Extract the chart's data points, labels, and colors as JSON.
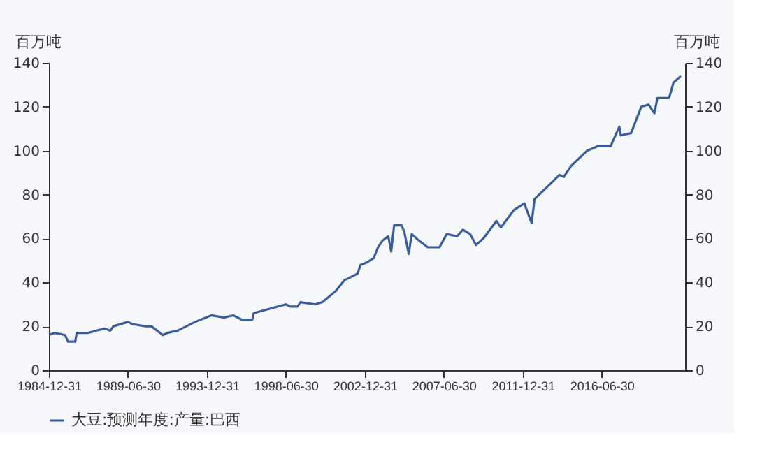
{
  "chart_data": {
    "type": "line",
    "ylabel": "百万吨",
    "y2label": "百万吨",
    "x": [
      "1984-12-31",
      "1985-05",
      "1985-12",
      "1986-02",
      "1986-07",
      "1986-08",
      "1987-04",
      "1988-03",
      "1988-07",
      "1988-09",
      "1989-07",
      "1989-10",
      "1990-07",
      "1990-11",
      "1991-07",
      "1991-10",
      "1992-05",
      "1993-05",
      "1994-04",
      "1995-01",
      "1995-07",
      "1996-01",
      "1996-08",
      "1996-09",
      "1997-08",
      "1998-07",
      "1998-10",
      "1999-03",
      "1999-05",
      "2000-03",
      "2000-08",
      "2001-05",
      "2001-11",
      "2002-08",
      "2002-10",
      "2003-02",
      "2003-07",
      "2003-10",
      "2004-01",
      "2004-05",
      "2004-07",
      "2004-09",
      "2005-02",
      "2005-04",
      "2005-07",
      "2005-09",
      "2006-02",
      "2006-08",
      "2007-04",
      "2007-09",
      "2008-04",
      "2008-08",
      "2009-01",
      "2009-05",
      "2009-10",
      "2010-07",
      "2010-10",
      "2011-07",
      "2012-02",
      "2012-07",
      "2012-09",
      "2013-08",
      "2014-02",
      "2014-05",
      "2014-10",
      "2015-09",
      "2016-04",
      "2017-01",
      "2017-07",
      "2017-08",
      "2018-03",
      "2018-10",
      "2019-03",
      "2019-07",
      "2019-09",
      "2020-05",
      "2020-08",
      "2021-01"
    ],
    "series": [
      {
        "name": "大豆:预测年度:产量:巴西",
        "color": "#3a5da0",
        "values": [
          16,
          17,
          16,
          13,
          13,
          17,
          17,
          19,
          18,
          20,
          22,
          21,
          20,
          20,
          16,
          17,
          18,
          22,
          25,
          24,
          25,
          23,
          23,
          26,
          28,
          30,
          29,
          29,
          31,
          30,
          31,
          36,
          41,
          44,
          48,
          49,
          51,
          56,
          59,
          61,
          54,
          66,
          66,
          63,
          53,
          62,
          59,
          56,
          56,
          62,
          61,
          64,
          62,
          57,
          60,
          68,
          65,
          73,
          76,
          67,
          78,
          85,
          89,
          88,
          93,
          100,
          102,
          102,
          111,
          107,
          108,
          120,
          121,
          117,
          124,
          124,
          131,
          134
        ]
      }
    ],
    "xlim": [
      "1984-12-31",
      "2021-03-31"
    ],
    "xticks": [
      {
        "value": "1984-12-31",
        "label": "1984-12-31"
      },
      {
        "value": "1989-06-30",
        "label": "1989-06-30"
      },
      {
        "value": "1993-12-31",
        "label": "1993-12-31"
      },
      {
        "value": "1998-06-30",
        "label": "1998-06-30"
      },
      {
        "value": "2002-12-31",
        "label": "2002-12-31"
      },
      {
        "value": "2007-06-30",
        "label": "2007-06-30"
      },
      {
        "value": "2011-12-31",
        "label": "2011-12-31"
      },
      {
        "value": "2016-06-30",
        "label": "2016-06-30"
      }
    ],
    "ylim": [
      0,
      140
    ],
    "yticks": [
      0,
      20,
      40,
      60,
      80,
      100,
      120,
      140
    ],
    "y2lim": [
      0,
      140
    ],
    "y2ticks": [
      0,
      20,
      40,
      60,
      80,
      100,
      120,
      140
    ],
    "grid": false,
    "legend": "bottom",
    "marker": "none",
    "line_style": "solid"
  }
}
